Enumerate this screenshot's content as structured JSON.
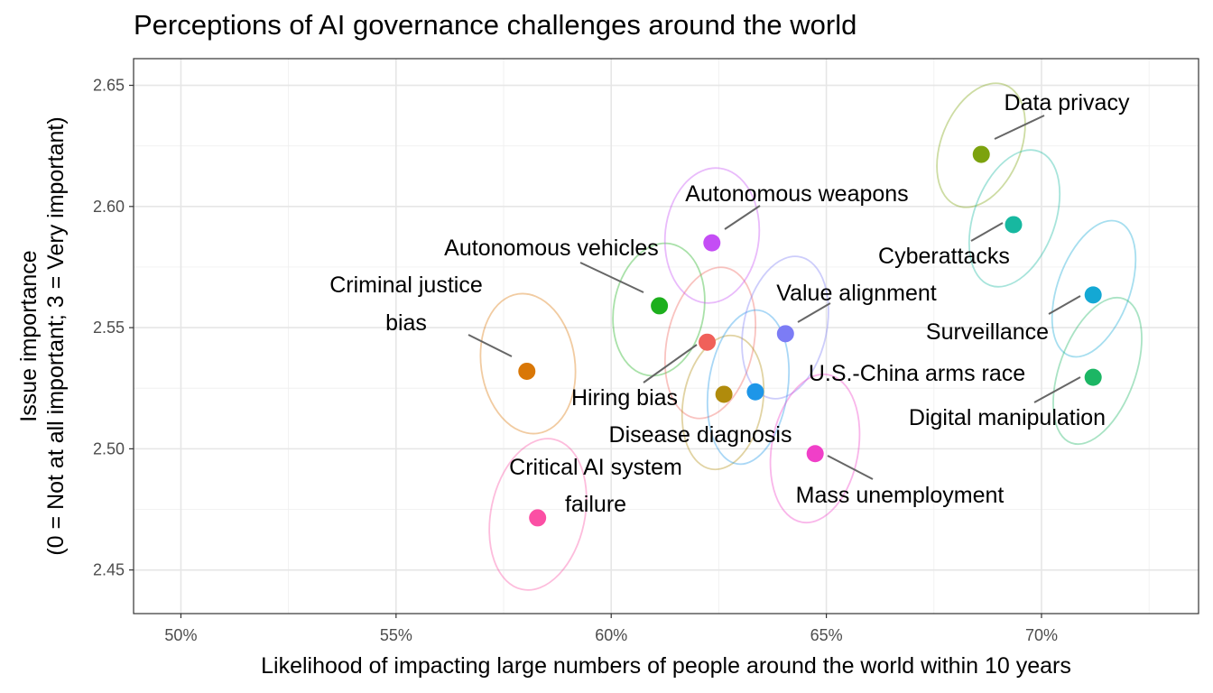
{
  "chart_data": {
    "type": "scatter",
    "title": "Perceptions of AI governance challenges around the world",
    "xlabel": "Likelihood of impacting large numbers of people around the world within 10 years",
    "ylabel_lines": [
      "Issue importance",
      "(0 = Not at all important; 3 = Very important)"
    ],
    "xlim": [
      0.489,
      0.7365
    ],
    "ylim": [
      2.432,
      2.661
    ],
    "x_ticks": [
      {
        "value": 0.5,
        "label": "50%"
      },
      {
        "value": 0.55,
        "label": "55%"
      },
      {
        "value": 0.6,
        "label": "60%"
      },
      {
        "value": 0.65,
        "label": "65%"
      },
      {
        "value": 0.7,
        "label": "70%"
      }
    ],
    "y_ticks": [
      {
        "value": 2.45,
        "label": "2.45"
      },
      {
        "value": 2.5,
        "label": "2.50"
      },
      {
        "value": 2.55,
        "label": "2.55"
      },
      {
        "value": 2.6,
        "label": "2.60"
      },
      {
        "value": 2.65,
        "label": "2.65"
      }
    ],
    "grid": true,
    "legend": "none",
    "points": [
      {
        "id": "criminal-justice-bias",
        "label_lines": [
          "Criminal justice",
          "bias"
        ],
        "x": 0.5804,
        "y": 2.532,
        "color": "#D97707"
      },
      {
        "id": "critical-ai-system-failure",
        "label_lines": [
          "Critical AI system",
          "failure"
        ],
        "x": 0.5829,
        "y": 2.4715,
        "color": "#FB4FA4"
      },
      {
        "id": "autonomous-vehicles",
        "label_lines": [
          "Autonomous vehicles"
        ],
        "x": 0.6112,
        "y": 2.559,
        "color": "#1DAF1D"
      },
      {
        "id": "hiring-bias",
        "label_lines": [
          "Hiring bias"
        ],
        "x": 0.6223,
        "y": 2.544,
        "color": "#F0605A"
      },
      {
        "id": "disease-diagnosis",
        "label_lines": [
          "Disease diagnosis"
        ],
        "x": 0.6262,
        "y": 2.5225,
        "color": "#B08B0C"
      },
      {
        "id": "autonomous-weapons",
        "label_lines": [
          "Autonomous weapons"
        ],
        "x": 0.6234,
        "y": 2.585,
        "color": "#C44DF5"
      },
      {
        "id": "us-china-arms-race",
        "label_lines": [
          "U.S.-China arms race"
        ],
        "x": 0.6335,
        "y": 2.5235,
        "color": "#1E96E8"
      },
      {
        "id": "value-alignment",
        "label_lines": [
          "Value alignment"
        ],
        "x": 0.6405,
        "y": 2.5475,
        "color": "#7C7CF5"
      },
      {
        "id": "mass-unemployment",
        "label_lines": [
          "Mass unemployment"
        ],
        "x": 0.6474,
        "y": 2.498,
        "color": "#F03FC8"
      },
      {
        "id": "data-privacy",
        "label_lines": [
          "Data privacy"
        ],
        "x": 0.686,
        "y": 2.6215,
        "color": "#7CA20E"
      },
      {
        "id": "cyberattacks",
        "label_lines": [
          "Cyberattacks"
        ],
        "x": 0.6935,
        "y": 2.5925,
        "color": "#17B8A0"
      },
      {
        "id": "surveillance",
        "label_lines": [
          "Surveillance"
        ],
        "x": 0.712,
        "y": 2.5635,
        "color": "#14A8D4"
      },
      {
        "id": "digital-manipulation",
        "label_lines": [
          "Digital manipulation"
        ],
        "x": 0.712,
        "y": 2.5295,
        "color": "#1CB664"
      }
    ]
  }
}
